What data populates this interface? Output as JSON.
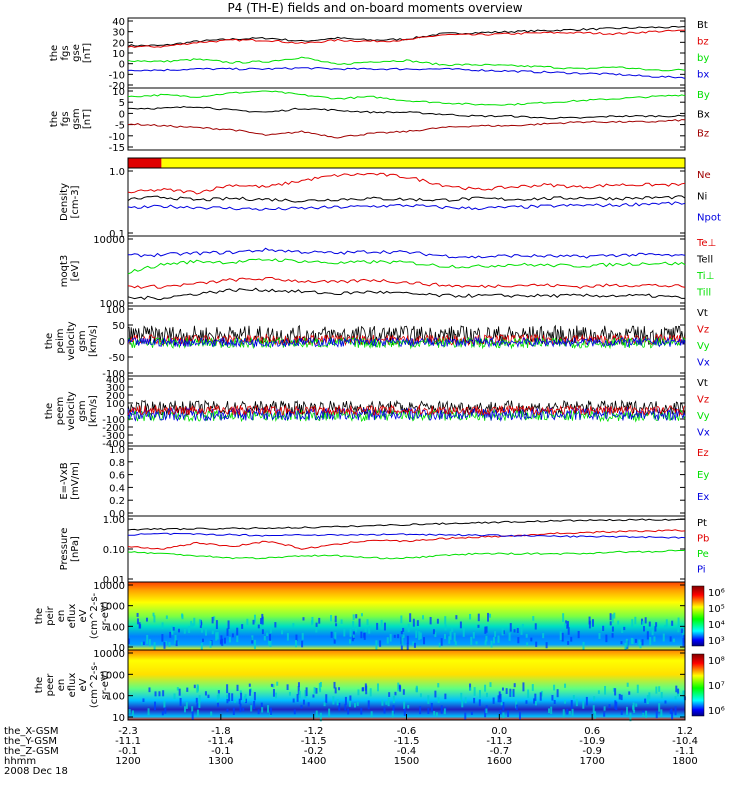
{
  "title": "P4 (TH-E) fields and on-board moments overview",
  "colors": {
    "black": "#000000",
    "red": "#e00000",
    "green": "#00e000",
    "blue": "#0000e0",
    "darkred": "#a00000",
    "yellow": "#ffff00"
  },
  "chart_data": [
    {
      "type": "line",
      "ylabel": [
        "the",
        "fgs",
        "gse",
        "[nT]"
      ],
      "yticks": [
        "40",
        "30",
        "20",
        "10",
        "0",
        "-10",
        "-20"
      ],
      "ylim": [
        -20,
        40
      ],
      "legend": [
        {
          "text": "Bt",
          "color": "black"
        },
        {
          "text": "bz",
          "color": "red"
        },
        {
          "text": "by",
          "color": "green"
        },
        {
          "text": "bx",
          "color": "blue"
        }
      ],
      "series": [
        {
          "name": "Bt",
          "color": "black",
          "values": [
            17,
            17,
            21,
            23,
            24,
            21,
            24,
            22,
            23,
            28,
            29,
            30,
            31,
            32,
            33,
            34,
            34
          ]
        },
        {
          "name": "bz",
          "color": "red",
          "values": [
            16,
            16,
            20,
            22,
            22,
            19,
            22,
            21,
            22,
            27,
            27,
            28,
            29,
            29,
            28,
            30,
            31
          ]
        },
        {
          "name": "by",
          "color": "green",
          "values": [
            3,
            2,
            4,
            1,
            2,
            6,
            -1,
            2,
            3,
            -1,
            -1,
            -2,
            -3,
            -5,
            -3,
            -6,
            -6
          ]
        },
        {
          "name": "bx",
          "color": "blue",
          "values": [
            -6,
            -6,
            -5,
            -5,
            -5,
            -4,
            -5,
            -5,
            -5,
            -5,
            -6,
            -7,
            -8,
            -9,
            -10,
            -12,
            -13
          ]
        }
      ]
    },
    {
      "type": "line",
      "ylabel": [
        "the",
        "fgs",
        "gsm",
        "[nT]"
      ],
      "yticks": [
        "10",
        "5",
        "0",
        "-5",
        "-10",
        "-15"
      ],
      "ylim": [
        -17,
        12
      ],
      "legend": [
        {
          "text": "By",
          "color": "green"
        },
        {
          "text": "Bx",
          "color": "black"
        },
        {
          "text": "Bz",
          "color": "darkred"
        }
      ],
      "series": [
        {
          "name": "By",
          "color": "green",
          "values": [
            9,
            10,
            9,
            11,
            12,
            10,
            8,
            9,
            7,
            6,
            5,
            5,
            6,
            7,
            8,
            9,
            10
          ]
        },
        {
          "name": "Bx",
          "color": "black",
          "values": [
            3,
            3,
            4,
            2,
            1,
            3,
            2,
            1,
            1,
            0,
            -1,
            -1,
            -2,
            -2,
            -1,
            -1,
            -1
          ]
        },
        {
          "name": "Bz",
          "color": "darkred",
          "values": [
            -5,
            -6,
            -7,
            -8,
            -11,
            -9,
            -12,
            -10,
            -9,
            -7,
            -6,
            -6,
            -5,
            -4,
            -4,
            -4,
            -3
          ]
        }
      ]
    },
    {
      "type": "bar",
      "name": "mode bar",
      "segments": [
        {
          "from": 0,
          "to": 0.06,
          "color": "red"
        },
        {
          "from": 0.06,
          "to": 1,
          "color": "yellow"
        }
      ]
    },
    {
      "type": "line",
      "scale": "log",
      "ylabel": [
        "Density",
        "[cm-3]"
      ],
      "yticks": [
        "1.0",
        "0.1"
      ],
      "ylim": [
        0.1,
        1.0
      ],
      "legend": [
        {
          "text": "Ne",
          "color": "darkred"
        },
        {
          "text": "Ni",
          "color": "black"
        },
        {
          "text": "Npot",
          "color": "blue"
        }
      ],
      "series": [
        {
          "name": "Ne",
          "color": "red",
          "values": [
            0.45,
            0.5,
            0.45,
            0.6,
            0.55,
            0.7,
            0.85,
            0.9,
            0.8,
            0.6,
            0.5,
            0.55,
            0.6,
            0.55,
            0.6,
            0.6,
            0.6
          ]
        },
        {
          "name": "Ni",
          "color": "black",
          "values": [
            0.35,
            0.38,
            0.34,
            0.36,
            0.35,
            0.33,
            0.35,
            0.36,
            0.35,
            0.34,
            0.36,
            0.35,
            0.36,
            0.37,
            0.36,
            0.37,
            0.38
          ]
        },
        {
          "name": "Npot",
          "color": "blue",
          "values": [
            0.25,
            0.27,
            0.26,
            0.25,
            0.24,
            0.25,
            0.26,
            0.27,
            0.28,
            0.26,
            0.25,
            0.26,
            0.27,
            0.28,
            0.28,
            0.3,
            0.3
          ]
        }
      ]
    },
    {
      "type": "line",
      "scale": "log",
      "ylabel": [
        "moqt3",
        "[eV]"
      ],
      "yticks": [
        "10000",
        "1000"
      ],
      "ylim": [
        1000,
        10000
      ],
      "legend": [
        {
          "text": "Te⊥",
          "color": "red"
        },
        {
          "text": "Tell",
          "color": "black"
        },
        {
          "text": "Ti⊥",
          "color": "green"
        },
        {
          "text": "Till",
          "color": "green"
        }
      ],
      "series": [
        {
          "name": "Ti⊥",
          "color": "blue",
          "values": [
            5500,
            5700,
            6000,
            6200,
            6800,
            6300,
            6000,
            6400,
            6200,
            5500,
            5200,
            5500,
            5400,
            5300,
            5600,
            5700,
            5400
          ]
        },
        {
          "name": "Till",
          "color": "green",
          "values": [
            3000,
            4000,
            4500,
            4300,
            4800,
            4500,
            4200,
            4400,
            4300,
            3800,
            3700,
            4000,
            3900,
            3800,
            4000,
            4200,
            4100
          ]
        },
        {
          "name": "Te⊥",
          "color": "red",
          "values": [
            1800,
            1800,
            2000,
            2300,
            2400,
            2200,
            2100,
            2300,
            2100,
            1900,
            1800,
            1900,
            1900,
            1800,
            1900,
            1900,
            1800
          ]
        },
        {
          "name": "Tell",
          "color": "black",
          "values": [
            1200,
            1200,
            1400,
            1600,
            1600,
            1500,
            1400,
            1500,
            1400,
            1300,
            1300,
            1300,
            1300,
            1300,
            1300,
            1300,
            1200
          ]
        }
      ]
    },
    {
      "type": "line",
      "ylabel": [
        "the",
        "peim",
        "velocity",
        "gsm",
        "[km/s]"
      ],
      "yticks": [
        "100",
        "50",
        "0",
        "-50",
        "-100"
      ],
      "ylim": [
        -100,
        100
      ],
      "legend": [
        {
          "text": "Vt",
          "color": "black"
        },
        {
          "text": "Vz",
          "color": "red"
        },
        {
          "text": "Vy",
          "color": "green"
        },
        {
          "text": "Vx",
          "color": "blue"
        }
      ],
      "noise": [
        {
          "color": "black",
          "base": 18,
          "amp": 30
        },
        {
          "color": "red",
          "base": 4,
          "amp": 16
        },
        {
          "color": "green",
          "base": -6,
          "amp": 16
        },
        {
          "color": "blue",
          "base": -4,
          "amp": 14
        }
      ]
    },
    {
      "type": "line",
      "ylabel": [
        "the",
        "peem",
        "velocity",
        "gsm",
        "[km/s]"
      ],
      "yticks": [
        "400",
        "300",
        "200",
        "100",
        "0",
        "-100",
        "-200",
        "-300",
        "-400"
      ],
      "ylim": [
        -400,
        400
      ],
      "legend": [
        {
          "text": "Vt",
          "color": "black"
        },
        {
          "text": "Vz",
          "color": "red"
        },
        {
          "text": "Vy",
          "color": "green"
        },
        {
          "text": "Vx",
          "color": "blue"
        }
      ],
      "noise": [
        {
          "color": "black",
          "base": 40,
          "amp": 90
        },
        {
          "color": "green",
          "base": -60,
          "amp": 70
        },
        {
          "color": "blue",
          "base": -40,
          "amp": 80
        },
        {
          "color": "red",
          "base": 10,
          "amp": 60
        }
      ]
    },
    {
      "type": "line",
      "ylabel": [
        "E=-VxB",
        "[mV/m]"
      ],
      "yticks": [
        "1.0",
        "0.8",
        "0.6",
        "0.4",
        "0.2",
        "0.0"
      ],
      "ylim": [
        0,
        1
      ],
      "legend": [
        {
          "text": "Ez",
          "color": "red"
        },
        {
          "text": "Ey",
          "color": "green"
        },
        {
          "text": "Ex",
          "color": "blue"
        }
      ],
      "series": []
    },
    {
      "type": "line",
      "scale": "log",
      "ylabel": [
        "Pressure",
        "[nPa]"
      ],
      "yticks": [
        "1.00",
        "0.10",
        "0.01"
      ],
      "ylim": [
        0.01,
        1
      ],
      "legend": [
        {
          "text": "Pt",
          "color": "black"
        },
        {
          "text": "Pb",
          "color": "red"
        },
        {
          "text": "Pe",
          "color": "green"
        },
        {
          "text": "Pi",
          "color": "blue"
        }
      ],
      "series": [
        {
          "name": "Pt",
          "color": "black",
          "values": [
            0.45,
            0.46,
            0.47,
            0.48,
            0.5,
            0.52,
            0.55,
            0.6,
            0.65,
            0.7,
            0.75,
            0.8,
            0.85,
            0.9,
            0.92,
            0.95,
            0.97
          ]
        },
        {
          "name": "Pb",
          "color": "red",
          "values": [
            0.12,
            0.1,
            0.16,
            0.12,
            0.18,
            0.1,
            0.14,
            0.2,
            0.18,
            0.22,
            0.25,
            0.27,
            0.32,
            0.35,
            0.38,
            0.4,
            0.42
          ]
        },
        {
          "name": "Pi",
          "color": "blue",
          "values": [
            0.3,
            0.32,
            0.31,
            0.3,
            0.28,
            0.3,
            0.29,
            0.3,
            0.31,
            0.3,
            0.29,
            0.28,
            0.27,
            0.26,
            0.26,
            0.25,
            0.24
          ]
        },
        {
          "name": "Pe",
          "color": "green",
          "values": [
            0.08,
            0.07,
            0.06,
            0.05,
            0.05,
            0.06,
            0.06,
            0.05,
            0.05,
            0.06,
            0.07,
            0.07,
            0.07,
            0.07,
            0.08,
            0.08,
            0.09
          ]
        }
      ]
    },
    {
      "type": "heatmap",
      "ylabel": [
        "the",
        "peir",
        "en",
        "eflux",
        "eV",
        "(cm^2-s-",
        "sr-eV)"
      ],
      "yticks": [
        "10000",
        "1000",
        "100",
        "10"
      ],
      "colorbar_ticks": [
        "10⁶",
        "10⁵",
        "10⁴",
        "10³"
      ]
    },
    {
      "type": "heatmap",
      "ylabel": [
        "the",
        "peer",
        "en",
        "eflux",
        "eV",
        "(cm^2-s-",
        "sr-eV)"
      ],
      "yticks": [
        "10000",
        "1000",
        "100",
        "10"
      ],
      "colorbar_ticks": [
        "10⁸",
        "10⁷",
        "10⁶"
      ]
    }
  ],
  "xaxis": {
    "rows": [
      {
        "label": "the_X-GSM",
        "values": [
          "-2.3",
          "-1.8",
          "-1.2",
          "-0.6",
          "0.0",
          "0.6",
          "1.2"
        ]
      },
      {
        "label": "the_Y-GSM",
        "values": [
          "-11.1",
          "-11.4",
          "-11.5",
          "-11.5",
          "-11.3",
          "-10.9",
          "-10.4"
        ]
      },
      {
        "label": "the_Z-GSM",
        "values": [
          "-0.1",
          "-0.1",
          "-0.2",
          "-0.4",
          "-0.7",
          "-0.9",
          "-1.1"
        ]
      },
      {
        "label": "hhmm",
        "values": [
          "1200",
          "1300",
          "1400",
          "1500",
          "1600",
          "1700",
          "1800"
        ]
      }
    ],
    "date": "2008 Dec 18"
  }
}
